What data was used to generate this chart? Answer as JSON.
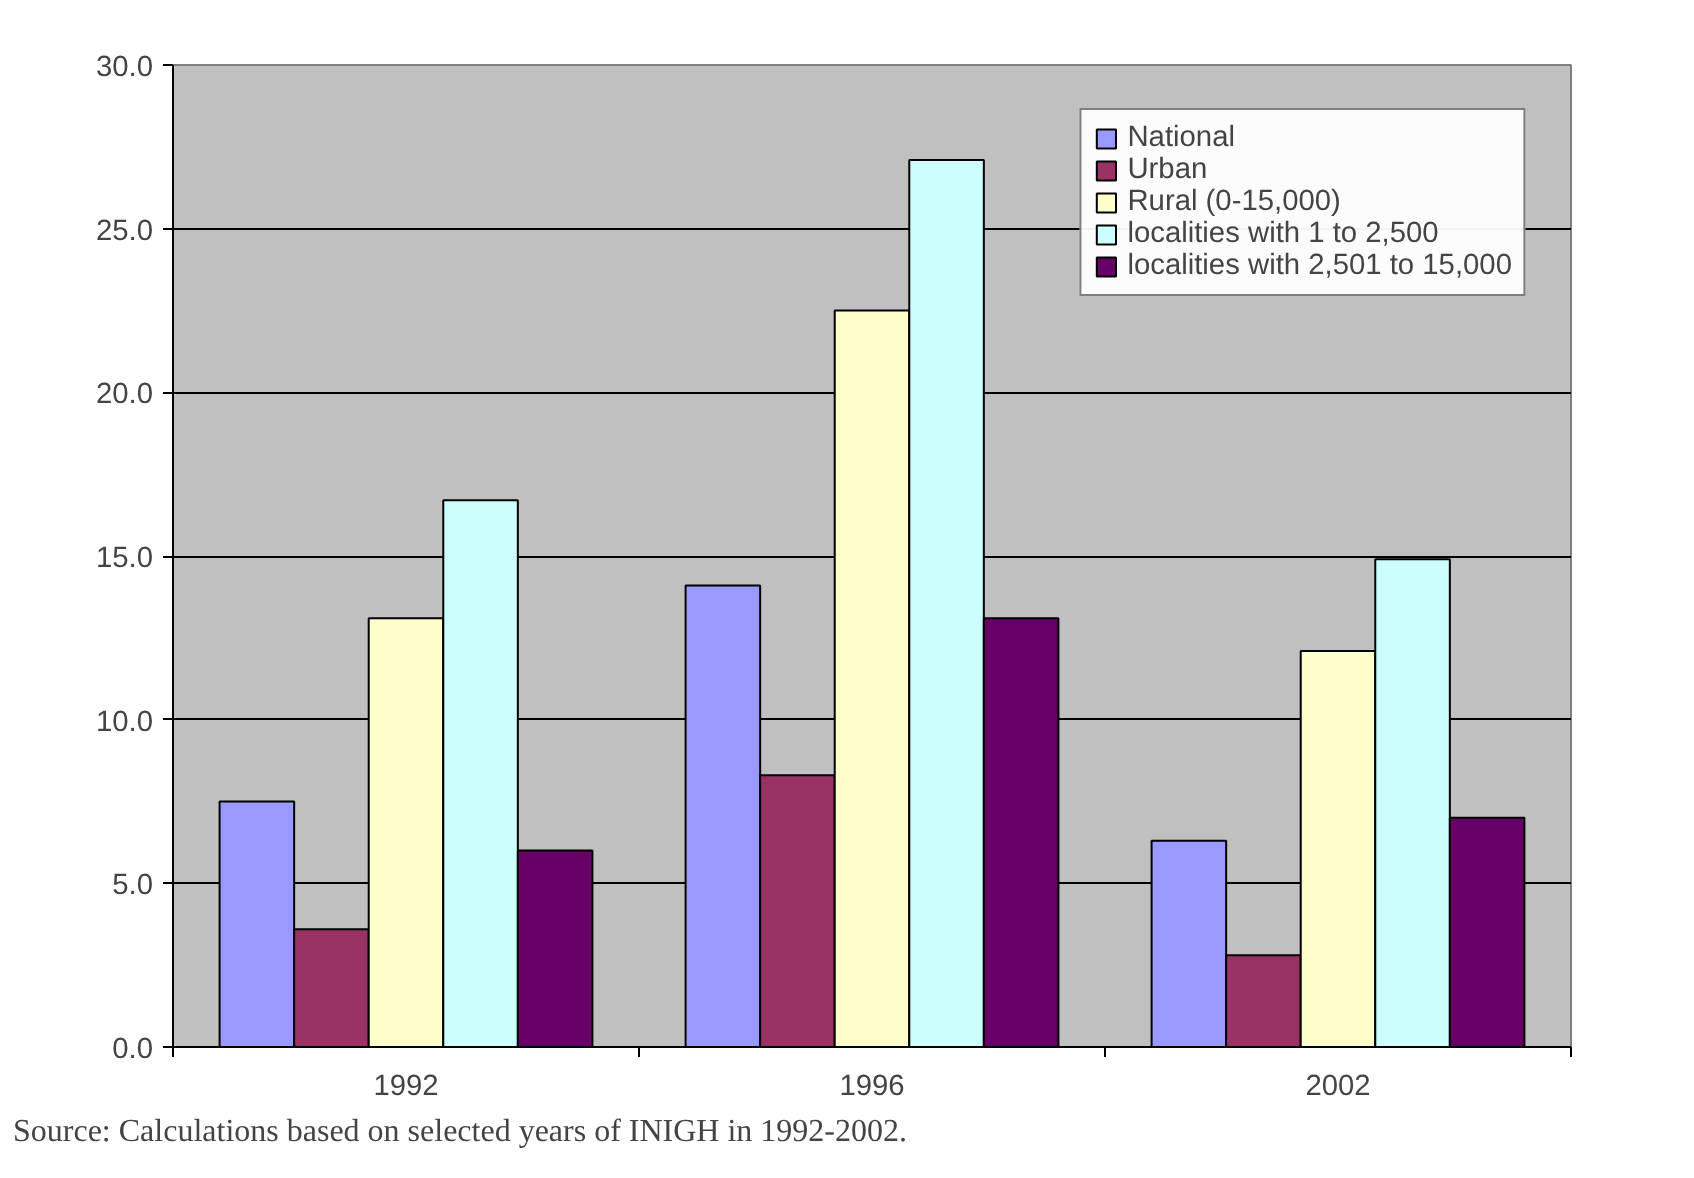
{
  "chart_data": {
    "type": "bar",
    "categories": [
      "1992",
      "1996",
      "2002"
    ],
    "series": [
      {
        "name": "National",
        "color": "#9999ff",
        "values": [
          7.5,
          14.1,
          6.3
        ]
      },
      {
        "name": "Urban",
        "color": "#993366",
        "values": [
          3.6,
          8.3,
          2.8
        ]
      },
      {
        "name": "Rural (0-15,000)",
        "color": "#ffffcc",
        "values": [
          13.1,
          22.5,
          12.1
        ]
      },
      {
        "name": "localities with 1 to 2,500",
        "color": "#ccffff",
        "values": [
          16.7,
          27.1,
          14.9
        ]
      },
      {
        "name": "localities with 2,501 to 15,000",
        "color": "#660066",
        "values": [
          6.0,
          13.1,
          7.0
        ]
      }
    ],
    "ylim": [
      0,
      30
    ],
    "yticks": [
      {
        "value": 0,
        "label": "0.0"
      },
      {
        "value": 5,
        "label": "5.0"
      },
      {
        "value": 10,
        "label": "10.0"
      },
      {
        "value": 15,
        "label": "15.0"
      },
      {
        "value": 20,
        "label": "20.0"
      },
      {
        "value": 25,
        "label": "25.0"
      },
      {
        "value": 30,
        "label": "30.0"
      }
    ],
    "grid": "y",
    "legend": "top right",
    "annotations": [
      "Source: Calculations based on selected years of INIGH in 1992-2002."
    ]
  }
}
